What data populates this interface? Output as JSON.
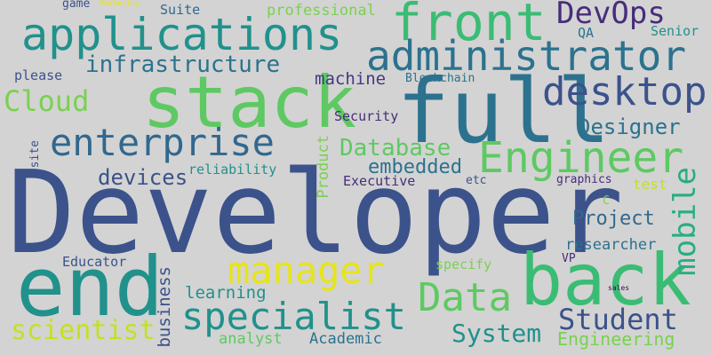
{
  "words": [
    {
      "text": "Developer",
      "color": "#3b528b"
    },
    {
      "text": "end",
      "color": "#21918c"
    },
    {
      "text": "full",
      "color": "#2c728e"
    },
    {
      "text": "stack",
      "color": "#5ec962"
    },
    {
      "text": "back",
      "color": "#3bbc74"
    },
    {
      "text": "front",
      "color": "#3bbc74"
    },
    {
      "text": "applications",
      "color": "#21918c"
    },
    {
      "text": "administrator",
      "color": "#2c728e"
    },
    {
      "text": "desktop",
      "color": "#3b528b"
    },
    {
      "text": "Engineer",
      "color": "#5ec962"
    },
    {
      "text": "enterprise",
      "color": "#31688e"
    },
    {
      "text": "manager",
      "color": "#e7e419"
    },
    {
      "text": "specialist",
      "color": "#21918c"
    },
    {
      "text": "Data",
      "color": "#5ec962"
    },
    {
      "text": "DevOps",
      "color": "#472d7b"
    },
    {
      "text": "infrastructure",
      "color": "#2c728e"
    },
    {
      "text": "Cloud",
      "color": "#7ad151"
    },
    {
      "text": "mobile",
      "color": "#28ae80"
    },
    {
      "text": "Student",
      "color": "#3b528b"
    },
    {
      "text": "System",
      "color": "#21918c"
    },
    {
      "text": "scientist",
      "color": "#c5e021"
    },
    {
      "text": "Database",
      "color": "#5ec962"
    },
    {
      "text": "embedded",
      "color": "#2c728e"
    },
    {
      "text": "devices",
      "color": "#3b528b"
    },
    {
      "text": "Designer",
      "color": "#2c728e"
    },
    {
      "text": "Project",
      "color": "#31688e"
    },
    {
      "text": "Engineering",
      "color": "#7ad151"
    },
    {
      "text": "professional",
      "color": "#7ad151"
    },
    {
      "text": "machine",
      "color": "#443983"
    },
    {
      "text": "learning",
      "color": "#21918c"
    },
    {
      "text": "business",
      "color": "#3b528b"
    },
    {
      "text": "Product",
      "color": "#7ad151"
    },
    {
      "text": "Executive",
      "color": "#472d7b"
    },
    {
      "text": "reliability",
      "color": "#21918c"
    },
    {
      "text": "researcher",
      "color": "#2c728e"
    },
    {
      "text": "Educator",
      "color": "#3b528b"
    },
    {
      "text": "analyst",
      "color": "#5ec962"
    },
    {
      "text": "Academic",
      "color": "#2c728e"
    },
    {
      "text": "specify",
      "color": "#7ad151"
    },
    {
      "text": "please",
      "color": "#3b528b"
    },
    {
      "text": "Security",
      "color": "#472d7b"
    },
    {
      "text": "Suite",
      "color": "#31688e"
    },
    {
      "text": "game",
      "color": "#3b528b"
    },
    {
      "text": "QA",
      "color": "#2c728e"
    },
    {
      "text": "Senior",
      "color": "#21918c"
    },
    {
      "text": "Blockchain",
      "color": "#2c728e"
    },
    {
      "text": "etc",
      "color": "#3b528b"
    },
    {
      "text": "graphics",
      "color": "#472d7b"
    },
    {
      "text": "test",
      "color": "#c5e021"
    },
    {
      "text": "C",
      "color": "#7ad151"
    },
    {
      "text": "VP",
      "color": "#472d7b"
    },
    {
      "text": "site",
      "color": "#3b528b"
    },
    {
      "text": "Marketing",
      "color": "#e7e419"
    },
    {
      "text": "sales",
      "color": "#440154"
    }
  ]
}
